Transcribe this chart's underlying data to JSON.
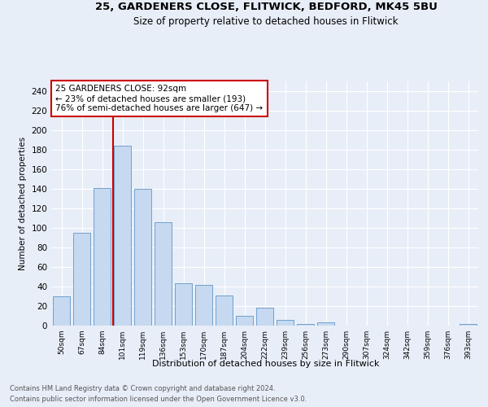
{
  "title_line1": "25, GARDENERS CLOSE, FLITWICK, BEDFORD, MK45 5BU",
  "title_line2": "Size of property relative to detached houses in Flitwick",
  "xlabel": "Distribution of detached houses by size in Flitwick",
  "ylabel": "Number of detached properties",
  "annotation_line1": "25 GARDENERS CLOSE: 92sqm",
  "annotation_line2": "← 23% of detached houses are smaller (193)",
  "annotation_line3": "76% of semi-detached houses are larger (647) →",
  "bar_labels": [
    "50sqm",
    "67sqm",
    "84sqm",
    "101sqm",
    "119sqm",
    "136sqm",
    "153sqm",
    "170sqm",
    "187sqm",
    "204sqm",
    "222sqm",
    "239sqm",
    "256sqm",
    "273sqm",
    "290sqm",
    "307sqm",
    "324sqm",
    "342sqm",
    "359sqm",
    "376sqm",
    "393sqm"
  ],
  "bar_values": [
    30,
    95,
    141,
    184,
    140,
    106,
    43,
    42,
    31,
    10,
    18,
    6,
    2,
    3,
    0,
    0,
    0,
    0,
    0,
    0,
    2
  ],
  "vline_position": 2.53,
  "bar_color": "#c6d9f0",
  "bar_edge_color": "#6096c8",
  "vline_color": "#cc0000",
  "annotation_box_color": "#cc0000",
  "footer_line1": "Contains HM Land Registry data © Crown copyright and database right 2024.",
  "footer_line2": "Contains public sector information licensed under the Open Government Licence v3.0.",
  "ylim": [
    0,
    250
  ],
  "yticks": [
    0,
    20,
    40,
    60,
    80,
    100,
    120,
    140,
    160,
    180,
    200,
    220,
    240
  ],
  "background_color": "#e8eef8",
  "plot_background_color": "#e8eef8",
  "grid_color": "#ffffff"
}
